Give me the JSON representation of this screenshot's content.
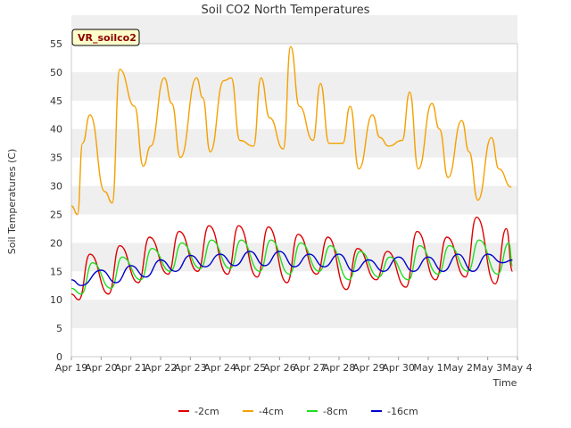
{
  "chart_data": {
    "type": "line",
    "title": "Soil CO2 North Temperatures",
    "xlabel": "Time",
    "ylabel": "Soil Temperatures (C)",
    "station_label": "VR_soilco2",
    "ylim": [
      0,
      55
    ],
    "yticks": [
      0,
      5,
      10,
      15,
      20,
      25,
      30,
      35,
      40,
      45,
      50,
      55
    ],
    "xlim": [
      "2000-04-19",
      "2000-05-04"
    ],
    "xtick_labels": [
      "Apr 19",
      "Apr 20",
      "Apr 21",
      "Apr 22",
      "Apr 23",
      "Apr 24",
      "Apr 25",
      "Apr 26",
      "Apr 27",
      "Apr 28",
      "Apr 29",
      "Apr 30",
      "May 1",
      "May 2",
      "May 3",
      "May 4"
    ],
    "grid": "horizontal bands",
    "legend_position": "bottom",
    "colors": {
      "band": "#efefef",
      "plot_bg": "#ffffff",
      "badge_bg": "#ffffcc",
      "badge_text": "#8b0000"
    },
    "series": [
      {
        "name": "-2cm",
        "color": "#dd0000",
        "x": [
          "2000-04-19",
          "2000-04-19 06:00",
          "2000-04-19 15:00",
          "2000-04-20 06:00",
          "2000-04-20 15:00",
          "2000-04-21 06:00",
          "2000-04-21 15:00",
          "2000-04-22 06:00",
          "2000-04-22 15:00",
          "2000-04-23 06:00",
          "2000-04-23 15:00",
          "2000-04-24 06:00",
          "2000-04-24 15:00",
          "2000-04-25 06:00",
          "2000-04-25 15:00",
          "2000-04-26 06:00",
          "2000-04-26 15:00",
          "2000-04-27 06:00",
          "2000-04-27 15:00",
          "2000-04-28 06:00",
          "2000-04-28 15:00",
          "2000-04-29 06:00",
          "2000-04-29 15:00",
          "2000-04-30 06:00",
          "2000-04-30 15:00",
          "2000-05-01 06:00",
          "2000-05-01 15:00",
          "2000-05-02 06:00",
          "2000-05-02 15:00",
          "2000-05-03 06:00",
          "2000-05-03 15:00",
          "2000-05-03 20:00"
        ],
        "values": [
          11.0,
          10.0,
          18.0,
          11.0,
          19.5,
          13.0,
          21.0,
          14.5,
          22.0,
          15.0,
          23.0,
          14.5,
          23.0,
          14.0,
          22.8,
          13.0,
          21.5,
          14.5,
          21.0,
          11.8,
          19.0,
          13.5,
          18.5,
          12.2,
          22.0,
          13.5,
          21.0,
          14.0,
          24.5,
          12.8,
          22.5,
          15.0
        ]
      },
      {
        "name": "-4cm",
        "color": "#f5a000",
        "x": [
          "2000-04-19",
          "2000-04-19 05:00",
          "2000-04-19 09:00",
          "2000-04-19 15:00",
          "2000-04-20 03:00",
          "2000-04-20 09:00",
          "2000-04-20 15:00",
          "2000-04-21 03:00",
          "2000-04-21 10:00",
          "2000-04-21 16:00",
          "2000-04-22 03:00",
          "2000-04-22 09:00",
          "2000-04-22 16:00",
          "2000-04-23 05:00",
          "2000-04-23 10:00",
          "2000-04-23 16:00",
          "2000-04-24 03:00",
          "2000-04-24 09:00",
          "2000-04-24 16:00",
          "2000-04-25 03:00",
          "2000-04-25 09:00",
          "2000-04-25 16:00",
          "2000-04-26 03:00",
          "2000-04-26 09:00",
          "2000-04-26 16:00",
          "2000-04-27 03:00",
          "2000-04-27 09:00",
          "2000-04-27 16:00",
          "2000-04-28 03:00",
          "2000-04-28 09:00",
          "2000-04-28 16:00",
          "2000-04-29 03:00",
          "2000-04-29 09:00",
          "2000-04-29 16:00",
          "2000-04-30 03:00",
          "2000-04-30 09:00",
          "2000-04-30 16:00",
          "2000-05-01 03:00",
          "2000-05-01 09:00",
          "2000-05-01 16:00",
          "2000-05-02 03:00",
          "2000-05-02 09:00",
          "2000-05-02 16:00",
          "2000-05-03 03:00",
          "2000-05-03 09:00",
          "2000-05-03 19:00"
        ],
        "values": [
          26.5,
          25.0,
          37.5,
          42.5,
          29.0,
          27.0,
          50.5,
          44.0,
          33.5,
          37.0,
          49.0,
          44.5,
          35.0,
          49.0,
          45.5,
          36.0,
          48.5,
          49.0,
          38.0,
          37.0,
          49.0,
          42.0,
          36.5,
          54.5,
          44.0,
          38.0,
          48.0,
          37.5,
          37.5,
          44.0,
          33.0,
          42.5,
          38.5,
          37.0,
          38.0,
          46.5,
          33.0,
          44.5,
          40.0,
          31.5,
          41.5,
          36.0,
          27.5,
          38.5,
          33.0,
          29.8
        ]
      },
      {
        "name": "-8cm",
        "color": "#22dd22",
        "x": [
          "2000-04-19",
          "2000-04-19 08:00",
          "2000-04-19 17:00",
          "2000-04-20 08:00",
          "2000-04-20 17:00",
          "2000-04-21 08:00",
          "2000-04-21 17:00",
          "2000-04-22 08:00",
          "2000-04-22 17:00",
          "2000-04-23 08:00",
          "2000-04-23 17:00",
          "2000-04-24 08:00",
          "2000-04-24 17:00",
          "2000-04-25 08:00",
          "2000-04-25 17:00",
          "2000-04-26 08:00",
          "2000-04-26 17:00",
          "2000-04-27 08:00",
          "2000-04-27 17:00",
          "2000-04-28 08:00",
          "2000-04-28 17:00",
          "2000-04-29 08:00",
          "2000-04-29 17:00",
          "2000-04-30 08:00",
          "2000-04-30 17:00",
          "2000-05-01 08:00",
          "2000-05-01 17:00",
          "2000-05-02 08:00",
          "2000-05-02 17:00",
          "2000-05-03 08:00",
          "2000-05-03 17:00",
          "2000-05-03 20:00"
        ],
        "values": [
          12.0,
          11.0,
          16.5,
          12.0,
          17.5,
          13.5,
          19.0,
          15.0,
          20.0,
          15.5,
          20.5,
          15.5,
          20.5,
          15.0,
          20.5,
          14.5,
          20.0,
          15.0,
          19.5,
          13.5,
          18.5,
          14.0,
          17.5,
          13.5,
          19.5,
          14.5,
          19.5,
          15.0,
          20.5,
          14.5,
          20.0,
          16.0
        ]
      },
      {
        "name": "-16cm",
        "color": "#0000cc",
        "x": [
          "2000-04-19",
          "2000-04-19 08:00",
          "2000-04-20 00:00",
          "2000-04-20 12:00",
          "2000-04-21 00:00",
          "2000-04-21 12:00",
          "2000-04-22 00:00",
          "2000-04-22 12:00",
          "2000-04-23 00:00",
          "2000-04-23 12:00",
          "2000-04-24 00:00",
          "2000-04-24 12:00",
          "2000-04-25 00:00",
          "2000-04-25 12:00",
          "2000-04-26 00:00",
          "2000-04-26 12:00",
          "2000-04-27 00:00",
          "2000-04-27 12:00",
          "2000-04-28 00:00",
          "2000-04-28 12:00",
          "2000-04-29 00:00",
          "2000-04-29 12:00",
          "2000-04-30 00:00",
          "2000-04-30 12:00",
          "2000-05-01 00:00",
          "2000-05-01 12:00",
          "2000-05-02 00:00",
          "2000-05-02 12:00",
          "2000-05-03 00:00",
          "2000-05-03 12:00",
          "2000-05-03 20:00"
        ],
        "values": [
          13.5,
          12.5,
          15.2,
          13.0,
          16.0,
          14.0,
          17.0,
          15.0,
          17.8,
          15.8,
          18.0,
          16.0,
          18.5,
          16.0,
          18.5,
          15.8,
          18.0,
          15.8,
          18.0,
          15.0,
          17.0,
          15.0,
          17.5,
          15.0,
          17.5,
          15.0,
          18.0,
          15.0,
          18.0,
          16.5,
          17.0
        ]
      }
    ]
  }
}
